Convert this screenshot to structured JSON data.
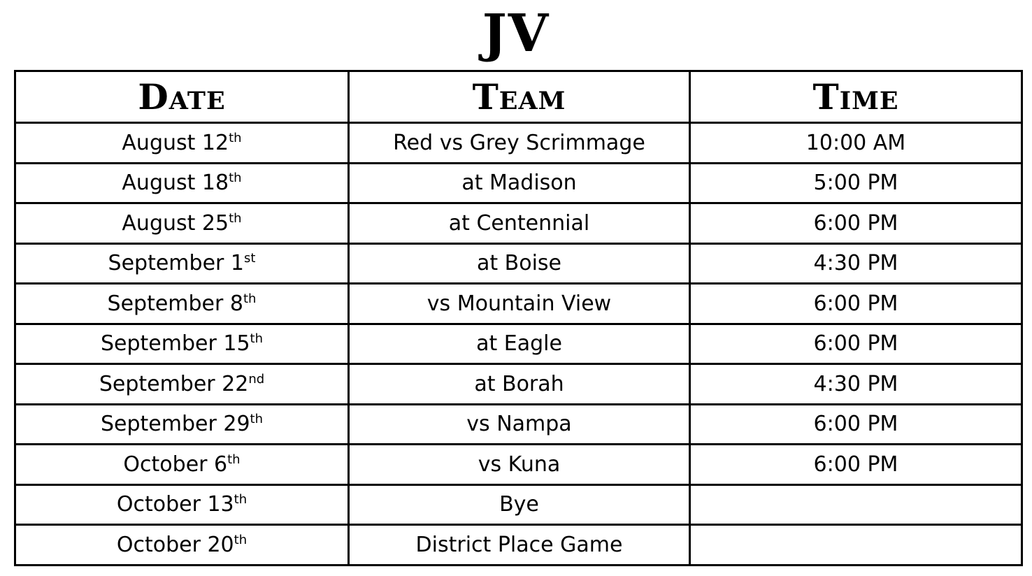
{
  "page": {
    "title": "JV"
  },
  "schedule_table": {
    "headers": [
      "Date",
      "Team",
      "Time"
    ],
    "rows": [
      {
        "date": "August 12",
        "ordinal": "th",
        "team": "Red vs Grey Scrimmage",
        "time": "10:00 AM"
      },
      {
        "date": "August 18",
        "ordinal": "th",
        "team": "at Madison",
        "time": "5:00 PM"
      },
      {
        "date": "August 25",
        "ordinal": "th",
        "team": "at Centennial",
        "time": "6:00 PM"
      },
      {
        "date": "September 1",
        "ordinal": "st",
        "team": "at Boise",
        "time": "4:30 PM"
      },
      {
        "date": "September 8",
        "ordinal": "th",
        "team": "vs Mountain View",
        "time": "6:00 PM"
      },
      {
        "date": "September 15",
        "ordinal": "th",
        "team": "at Eagle",
        "time": "6:00 PM"
      },
      {
        "date": "September 22",
        "ordinal": "nd",
        "team": "at Borah",
        "time": "4:30 PM"
      },
      {
        "date": "September 29",
        "ordinal": "th",
        "team": "vs Nampa",
        "time": "6:00 PM"
      },
      {
        "date": "October 6",
        "ordinal": "th",
        "team": "vs Kuna",
        "time": "6:00 PM"
      },
      {
        "date": "October 13",
        "ordinal": "th",
        "team": "Bye",
        "time": ""
      },
      {
        "date": "October 20",
        "ordinal": "th",
        "team": "District Place Game",
        "time": ""
      }
    ],
    "colors": {
      "border": "#000000",
      "text": "#000000",
      "background": "#ffffff"
    }
  }
}
